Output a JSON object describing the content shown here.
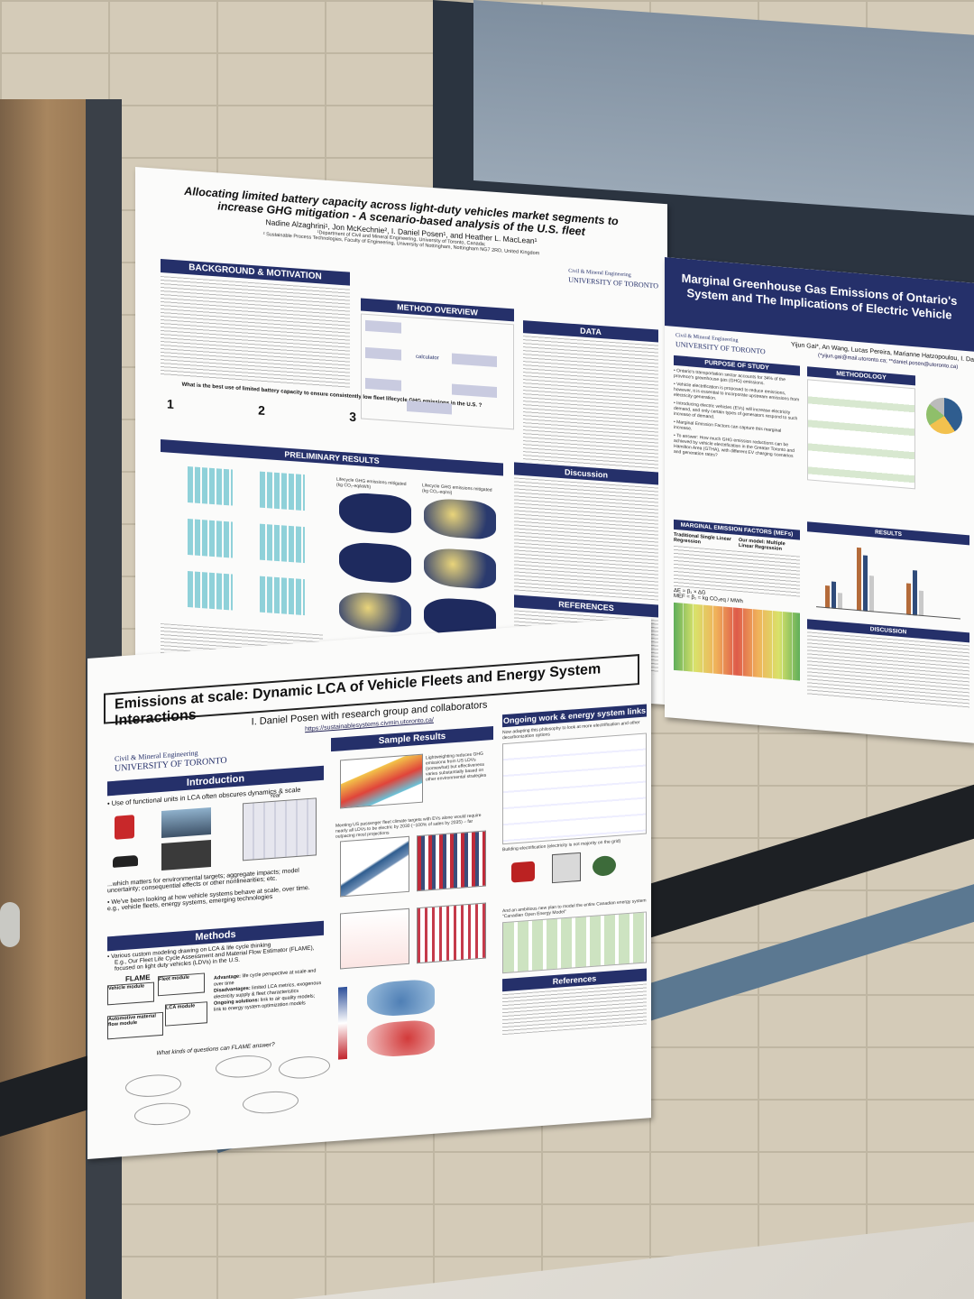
{
  "poster_a": {
    "title_line1": "Allocating limited battery capacity across light-duty vehicles market segments to",
    "title_line2": "increase GHG mitigation -  A scenario-based analysis of the U.S. fleet",
    "authors": "Nadine Alzaghrini¹, Jon McKechnie², I. Daniel Posen¹, and Heather L. MacLean¹",
    "affil1": "¹Department of Civil and Mineral Engineering, University of Toronto, Canada;",
    "affil2": "² Sustainable Process Technologies, Faculty of Engineering, University of Nottingham, Nottingham NG7 2RD, United Kingdom",
    "logo_line1": "Civil & Mineral Engineering",
    "logo_line2": "UNIVERSITY OF TORONTO",
    "sections": {
      "background": "BACKGROUND & MOTIVATION",
      "method": "METHOD OVERVIEW",
      "data": "DATA",
      "preliminary": "PRELIMINARY RESULTS",
      "discussion": "Discussion",
      "references": "REFERENCES"
    },
    "question": "What is the best use of limited battery capacity to ensure consistently low fleet lifecycle GHG emissions in the U.S. ?",
    "q_numbers": [
      "1",
      "2",
      "3"
    ],
    "method_calc": "calculator",
    "map_label_left": "Lifecycle GHG emissions mitigated (kg CO₂-eq/kWh)",
    "map_label_right": "Lifecycle GHG emissions mitigated (kg CO₂-eq/mi)"
  },
  "poster_b": {
    "title": "Emissions at scale: Dynamic LCA of Vehicle Fleets and Energy System Interactions",
    "subtitle": "I. Daniel Posen with research group and collaborators",
    "url": "https://sustainablesystems.civmin.utoronto.ca/",
    "logo_line1": "Civil & Mineral Engineering",
    "logo_line2": "UNIVERSITY OF TORONTO",
    "sections": {
      "intro": "Introduction",
      "sample": "Sample Results",
      "ongoing": "Ongoing work & energy system links",
      "methods": "Methods",
      "references": "References"
    },
    "intro_bullet1": "Use of functional units in LCA often obscures dynamics & scale",
    "intro_bullet2": "...which matters for environmental targets; aggregate impacts; model uncertainty; consequential effects or other nonlinearities; etc.",
    "intro_bullet3": "We've been looking at how vehicle systems behave at scale, over time. e.g., vehicle fleets, energy systems, emerging technologies",
    "year_label": "Year",
    "methods_bullet1": "Various custom modeling drawing on LCA & life cycle thinking",
    "methods_bullet2": "E.g., Our Fleet Life Cycle Assessment and Material Flow Estimator (FLAME), focused on light duty vehicles (LDVs) in the U.S.",
    "flame_label": "FLAME",
    "modules": [
      "Vehicle module",
      "Fleet module",
      "Automotive material flow module",
      "LCA module"
    ],
    "advantage_label": "Advantage:",
    "advantage_text": "life cycle perspective at scale and over time",
    "disadvantages_label": "Disadvantages:",
    "disadvantages_text": "limited LCA metrics, exogenous electricity supply & fleet characteristics",
    "ongoing_label": "Ongoing solutions:",
    "ongoing_text": "link to air quality models; link to energy system optimization models",
    "questions_prompt": "What kinds of questions can FLAME answer?",
    "result_note1": "Lightweighting reduces GHG emissions from US LDVs (somewhat) but effectiveness varies substantially based on other environmental strategies",
    "result_note2": "Meeting US passenger fleet climate targets with EVs alone would require nearly all LDVs to be electric by 2030 (~100% of sales by 2035) – far outpacing most projections",
    "ongoing_note": "Now adapting this philosophy to look at more electrification and other decarbonization options",
    "ongoing_note2": "Building electrification (electricity is not majority on the grid)",
    "ongoing_note3": "And an ambitious new plan to model the entire Canadian energy system \"Canadian Open Energy Model\""
  },
  "poster_c": {
    "title_line1": "Marginal Greenhouse Gas Emissions of Ontario's",
    "title_line2": "System and The Implications of Electric Vehicle",
    "authors": "Yijun Gai*, An Wang, Lucas Pereira, Marianne Hatzopoulou, I. Daniel Po",
    "emails": "(*yijun.gai@mail.utoronto.ca; **daniel.posen@utoronto.ca)",
    "logo_line1": "Civil & Mineral Engineering",
    "logo_line2": "UNIVERSITY OF TORONTO",
    "sections": {
      "purpose": "PURPOSE OF STUDY",
      "methodology": "METHODOLOGY",
      "mef": "MARGINAL EMISSION FACTORS (MEFs)",
      "results": "RESULTS",
      "discussion": "DISCUSSION"
    },
    "purpose_bullets": [
      "Ontario's transportation sector accounts for 34% of the province's greenhouse gas (GHG) emissions.",
      "Vehicle electrification is proposed to reduce emissions, however, it is essential to incorporate upstream emissions from electricity generation.",
      "Introducing electric vehicles (EVs) will increase electricity demand, and only certain types of generators respond to such increase of demand.",
      "Marginal Emission Factors can capture this marginal increase.",
      "To answer: How much GHG emission reductions can be achieved by vehicle electrification in the Greater Toronto and Hamilton Area (GTHA), with different EV charging scenarios and generation rates?"
    ],
    "traditional_label": "Traditional Single Linear Regression",
    "our_model_label": "Our model: Multiple Linear Regression",
    "formula1": "ΔE = β₁ × ΔG",
    "formula2": "MEF = β₁ = kg CO₂eq / MWh"
  },
  "colors": {
    "navy": "#25306a",
    "wall": "#d4cbb8",
    "poster_bg": "#fbfbfa"
  }
}
